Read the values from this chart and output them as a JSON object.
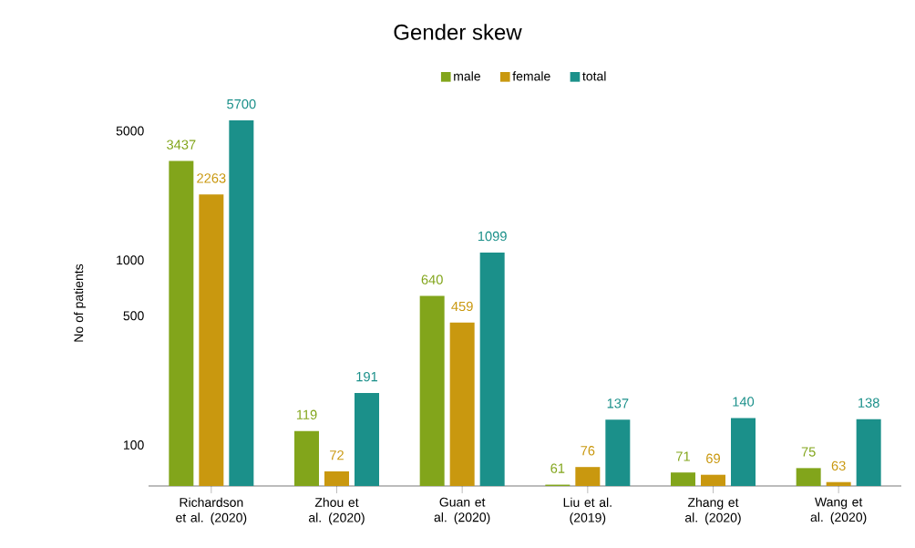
{
  "chart_data": {
    "type": "bar",
    "title": "Gender skew",
    "ylabel": "No of patients",
    "categories": [
      "Richardson et al. (2020)",
      "Zhou et al. (2020)",
      "Guan et al. (2020)",
      "Liu et al. (2019)",
      "Zhang et al. (2020)",
      "Wang et al. (2020)"
    ],
    "series": [
      {
        "name": "male",
        "color": "#82a51b",
        "values": [
          3437,
          119,
          640,
          61,
          71,
          75
        ]
      },
      {
        "name": "female",
        "color": "#c9980f",
        "values": [
          2263,
          72,
          459,
          76,
          69,
          63
        ]
      },
      {
        "name": "total",
        "color": "#1b908a",
        "values": [
          5700,
          191,
          1099,
          137,
          140,
          138
        ]
      }
    ],
    "log": true,
    "ylim": [
      60,
      5700
    ],
    "yticks": [
      100,
      500,
      1000,
      5000
    ],
    "data_labels": true,
    "legend": "top",
    "grid": false
  }
}
